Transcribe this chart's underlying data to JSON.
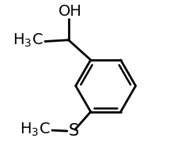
{
  "background_color": "#ffffff",
  "line_color": "#000000",
  "line_width": 2.0,
  "text_color": "#000000",
  "label_font_size": 14,
  "s_font_size": 15
}
